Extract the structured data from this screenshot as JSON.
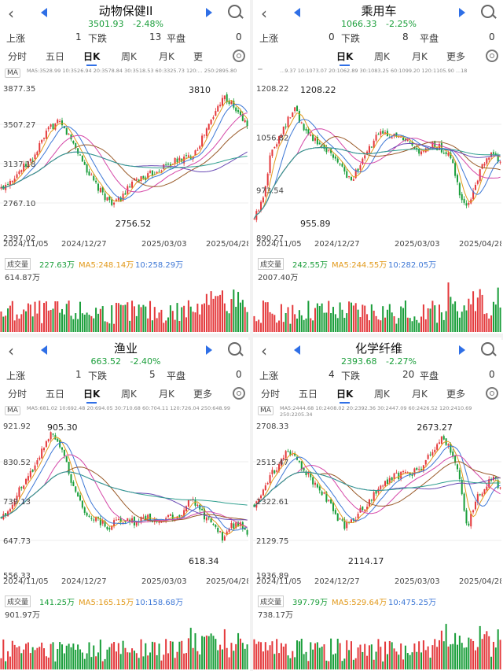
{
  "colors": {
    "up": "#e4393c",
    "down": "#1a9e3a",
    "accent": "#2f6fe6",
    "ma5": "#e29a1c",
    "ma10": "#3e78d6",
    "ma20": "#d548a8",
    "ma30": "#9a5b2a",
    "ma60": "#6a4bb5",
    "ma120": "#2f9f8f",
    "ma250": "#6b8f6b"
  },
  "panels": [
    {
      "title": "动物保健II",
      "price": "3501.93",
      "change": "-2.48%",
      "up_label": "上涨",
      "up_count": "1",
      "down_label": "下跌",
      "down_count": "13",
      "flat_label": "平盘",
      "flat_count": "0",
      "tabs": [
        "分时",
        "五日",
        "日K",
        "周K",
        "月K",
        "更"
      ],
      "ma_btn": "MA",
      "ma_line": "MA5:3528.99 10:3526.94 20:3578.84 30:3518.53 60:3325.73 120:... 250:2895.80",
      "y_labels": [
        "3877.35",
        "3507.27",
        "3137.18",
        "2767.10",
        "2397.02"
      ],
      "x_labels": [
        "2024/11/05",
        "2024/12/27",
        "2025/03/03",
        "2025/04/28"
      ],
      "hi_label": "3810",
      "lo_label": "2756.52",
      "vol_btn": "成交量",
      "vol": "227.63万",
      "vol_ma5": "MA5:248.14万",
      "vol_ma10": "10:258.29万",
      "vol_max": "614.87万",
      "chart_data": {
        "type": "candlestick",
        "ylim": [
          2397.02,
          3877.35
        ],
        "close_path": [
          2900,
          2980,
          3050,
          3120,
          3200,
          3350,
          3480,
          3520,
          3430,
          3300,
          3150,
          3000,
          2880,
          2800,
          2760,
          2850,
          2950,
          3000,
          3020,
          3080,
          3120,
          3150,
          3180,
          3200,
          3300,
          3450,
          3600,
          3780,
          3700,
          3600,
          3501.93
        ]
      }
    },
    {
      "title": "乘用车",
      "price": "1066.33",
      "change": "-2.25%",
      "up_label": "上涨",
      "up_count": "0",
      "down_label": "下跌",
      "down_count": "8",
      "flat_label": "平盘",
      "flat_count": "0",
      "tabs": [
        "",
        "日K",
        "周K",
        "月K",
        "更多"
      ],
      "ma_btn": "",
      "ma_line": "...9.37 10:1073.07 20:1062.89 30:1083.25 60:1099.20 120:1105.90 ...18",
      "y_labels": [
        "1208.22",
        "1056.82",
        "973.54",
        "890.27"
      ],
      "x_labels": [
        "2024/11/05",
        "2024/12/27",
        "2025/03/03",
        "2025/04/28"
      ],
      "hi_label": "1208.22",
      "lo_label": "955.89",
      "vol_btn": "成交量",
      "vol": "242.55万",
      "vol_ma5": "MA5:244.55万",
      "vol_ma10": "10:282.05万",
      "vol_max": "2007.40万",
      "chart_data": {
        "type": "candlestick",
        "ylim": [
          890.27,
          1230
        ],
        "close_path": [
          940,
          980,
          1080,
          1120,
          1150,
          1180,
          1130,
          1120,
          1100,
          1090,
          1070,
          1040,
          1030,
          1060,
          1090,
          1120,
          1130,
          1120,
          1110,
          1100,
          1080,
          1090,
          1100,
          1090,
          1070,
          1000,
          960,
          1020,
          1060,
          1080,
          1066.33
        ]
      }
    },
    {
      "title": "渔业",
      "price": "663.52",
      "change": "-2.40%",
      "up_label": "上涨",
      "up_count": "1",
      "down_label": "下跌",
      "down_count": "5",
      "flat_label": "平盘",
      "flat_count": "0",
      "tabs": [
        "分时",
        "五日",
        "日K",
        "周K",
        "月K",
        "更多"
      ],
      "ma_btn": "MA",
      "ma_line": "MA5:681.02 10:692.48 20:694.05 30:710.68 60:704.11 120:726.04 250:648.99",
      "y_labels": [
        "921.92",
        "830.52",
        "739.13",
        "647.73",
        "556.33"
      ],
      "x_labels": [
        "2024/11/05",
        "2024/12/27",
        "2025/03/03",
        "2025/04/28"
      ],
      "hi_label": "905.30",
      "lo_label": "618.34",
      "vol_btn": "成交量",
      "vol": "141.25万",
      "vol_ma5": "MA5:165.15万",
      "vol_ma10": "10:158.68万",
      "vol_max": "901.97万",
      "chart_data": {
        "type": "candlestick",
        "ylim": [
          556.33,
          921.92
        ],
        "close_path": [
          700,
          720,
          760,
          790,
          820,
          860,
          900,
          880,
          820,
          760,
          720,
          700,
          690,
          680,
          690,
          700,
          690,
          695,
          700,
          690,
          700,
          700,
          710,
          750,
          720,
          700,
          690,
          650,
          680,
          690,
          663.52
        ]
      }
    },
    {
      "title": "化学纤维",
      "price": "2393.68",
      "change": "-2.27%",
      "up_label": "上涨",
      "up_count": "4",
      "down_label": "下跌",
      "down_count": "20",
      "flat_label": "平盘",
      "flat_count": "0",
      "tabs": [
        "分时",
        "五日",
        "日K",
        "周K",
        "月K",
        "更多"
      ],
      "ma_btn": "MA",
      "ma_line": "MA5:2444.68 10:2408.02 20:2392.36 30:2447.09 60:2426.52 120:2410.69 250:2205.34",
      "y_labels": [
        "2708.33",
        "2515.47",
        "2322.61",
        "2129.75",
        "1936.89"
      ],
      "x_labels": [
        "2024/11/05",
        "2024/12/27",
        "2025/03/03",
        "2025/04/28"
      ],
      "hi_label": "2673.27",
      "lo_label": "2114.17",
      "vol_btn": "成交量",
      "vol": "397.79万",
      "vol_ma5": "MA5:529.64万",
      "vol_ma10": "10:475.25万",
      "vol_max": "738.17万",
      "chart_data": {
        "type": "candlestick",
        "ylim": [
          1936.89,
          2708.33
        ],
        "close_path": [
          2300,
          2380,
          2450,
          2500,
          2560,
          2540,
          2480,
          2420,
          2380,
          2320,
          2250,
          2200,
          2230,
          2280,
          2320,
          2380,
          2420,
          2440,
          2450,
          2460,
          2480,
          2520,
          2580,
          2640,
          2560,
          2460,
          2180,
          2330,
          2380,
          2440,
          2393.68
        ]
      }
    }
  ]
}
